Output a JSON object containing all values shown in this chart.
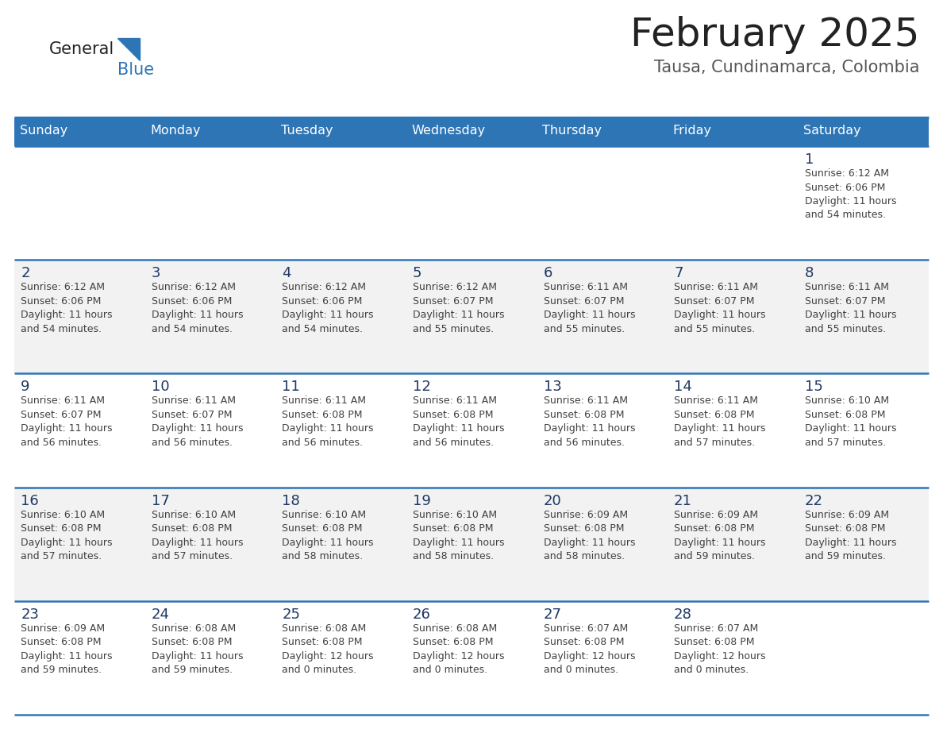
{
  "title": "February 2025",
  "subtitle": "Tausa, Cundinamarca, Colombia",
  "header_bg_color": "#2E75B6",
  "header_text_color": "#FFFFFF",
  "day_headers": [
    "Sunday",
    "Monday",
    "Tuesday",
    "Wednesday",
    "Thursday",
    "Friday",
    "Saturday"
  ],
  "row_bg_even": "#FFFFFF",
  "row_bg_odd": "#F2F2F2",
  "cell_text_color": "#404040",
  "day_num_color": "#1F3864",
  "divider_color": "#2E75B6",
  "title_color": "#222222",
  "subtitle_color": "#555555",
  "logo_general_color": "#222222",
  "logo_blue_color": "#2E75B6",
  "calendar_data": [
    [
      null,
      null,
      null,
      null,
      null,
      null,
      {
        "day": 1,
        "sunrise": "6:12 AM",
        "sunset": "6:06 PM",
        "daylight": "11 hours and 54 minutes."
      }
    ],
    [
      {
        "day": 2,
        "sunrise": "6:12 AM",
        "sunset": "6:06 PM",
        "daylight": "11 hours and 54 minutes."
      },
      {
        "day": 3,
        "sunrise": "6:12 AM",
        "sunset": "6:06 PM",
        "daylight": "11 hours and 54 minutes."
      },
      {
        "day": 4,
        "sunrise": "6:12 AM",
        "sunset": "6:06 PM",
        "daylight": "11 hours and 54 minutes."
      },
      {
        "day": 5,
        "sunrise": "6:12 AM",
        "sunset": "6:07 PM",
        "daylight": "11 hours and 55 minutes."
      },
      {
        "day": 6,
        "sunrise": "6:11 AM",
        "sunset": "6:07 PM",
        "daylight": "11 hours and 55 minutes."
      },
      {
        "day": 7,
        "sunrise": "6:11 AM",
        "sunset": "6:07 PM",
        "daylight": "11 hours and 55 minutes."
      },
      {
        "day": 8,
        "sunrise": "6:11 AM",
        "sunset": "6:07 PM",
        "daylight": "11 hours and 55 minutes."
      }
    ],
    [
      {
        "day": 9,
        "sunrise": "6:11 AM",
        "sunset": "6:07 PM",
        "daylight": "11 hours and 56 minutes."
      },
      {
        "day": 10,
        "sunrise": "6:11 AM",
        "sunset": "6:07 PM",
        "daylight": "11 hours and 56 minutes."
      },
      {
        "day": 11,
        "sunrise": "6:11 AM",
        "sunset": "6:08 PM",
        "daylight": "11 hours and 56 minutes."
      },
      {
        "day": 12,
        "sunrise": "6:11 AM",
        "sunset": "6:08 PM",
        "daylight": "11 hours and 56 minutes."
      },
      {
        "day": 13,
        "sunrise": "6:11 AM",
        "sunset": "6:08 PM",
        "daylight": "11 hours and 56 minutes."
      },
      {
        "day": 14,
        "sunrise": "6:11 AM",
        "sunset": "6:08 PM",
        "daylight": "11 hours and 57 minutes."
      },
      {
        "day": 15,
        "sunrise": "6:10 AM",
        "sunset": "6:08 PM",
        "daylight": "11 hours and 57 minutes."
      }
    ],
    [
      {
        "day": 16,
        "sunrise": "6:10 AM",
        "sunset": "6:08 PM",
        "daylight": "11 hours and 57 minutes."
      },
      {
        "day": 17,
        "sunrise": "6:10 AM",
        "sunset": "6:08 PM",
        "daylight": "11 hours and 57 minutes."
      },
      {
        "day": 18,
        "sunrise": "6:10 AM",
        "sunset": "6:08 PM",
        "daylight": "11 hours and 58 minutes."
      },
      {
        "day": 19,
        "sunrise": "6:10 AM",
        "sunset": "6:08 PM",
        "daylight": "11 hours and 58 minutes."
      },
      {
        "day": 20,
        "sunrise": "6:09 AM",
        "sunset": "6:08 PM",
        "daylight": "11 hours and 58 minutes."
      },
      {
        "day": 21,
        "sunrise": "6:09 AM",
        "sunset": "6:08 PM",
        "daylight": "11 hours and 59 minutes."
      },
      {
        "day": 22,
        "sunrise": "6:09 AM",
        "sunset": "6:08 PM",
        "daylight": "11 hours and 59 minutes."
      }
    ],
    [
      {
        "day": 23,
        "sunrise": "6:09 AM",
        "sunset": "6:08 PM",
        "daylight": "11 hours and 59 minutes."
      },
      {
        "day": 24,
        "sunrise": "6:08 AM",
        "sunset": "6:08 PM",
        "daylight": "11 hours and 59 minutes."
      },
      {
        "day": 25,
        "sunrise": "6:08 AM",
        "sunset": "6:08 PM",
        "daylight": "12 hours and 0 minutes."
      },
      {
        "day": 26,
        "sunrise": "6:08 AM",
        "sunset": "6:08 PM",
        "daylight": "12 hours and 0 minutes."
      },
      {
        "day": 27,
        "sunrise": "6:07 AM",
        "sunset": "6:08 PM",
        "daylight": "12 hours and 0 minutes."
      },
      {
        "day": 28,
        "sunrise": "6:07 AM",
        "sunset": "6:08 PM",
        "daylight": "12 hours and 0 minutes."
      },
      null
    ]
  ],
  "fig_width": 11.88,
  "fig_height": 9.18,
  "dpi": 100
}
